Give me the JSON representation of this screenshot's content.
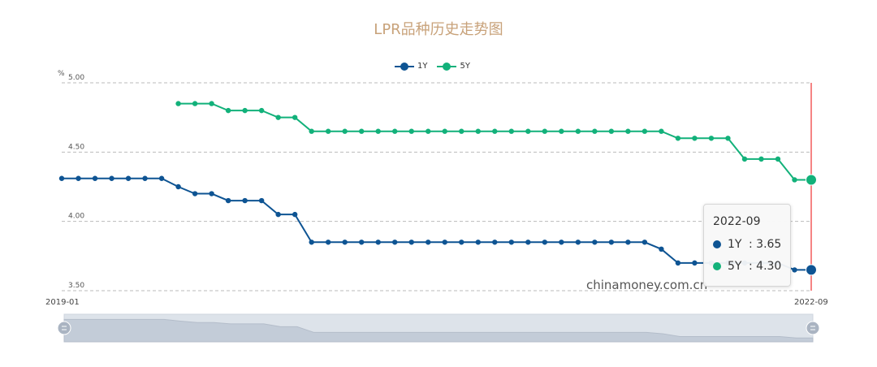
{
  "page": {
    "title": "LPR品种历史走势图",
    "watermark": "chinamoney.com.cn",
    "y_unit": "%"
  },
  "colors": {
    "title": "#c8a27a",
    "series_1y": "#0e5493",
    "series_5y": "#12b17a",
    "cursor": "#ee3333",
    "grid": "#bbbbbb",
    "slider_fill": "#dde3ea",
    "slider_handle": "#aab4c2"
  },
  "tooltip": {
    "date": "2022-09",
    "rows": [
      {
        "name": "1Y",
        "value": ": 3.65"
      },
      {
        "name": "5Y",
        "value": ": 4.30"
      }
    ]
  },
  "chart_data": {
    "type": "line",
    "ylim": [
      3.5,
      5.0
    ],
    "y_ticks": [
      "5.00",
      "4.50",
      "4.00",
      "3.50"
    ],
    "x_start_label": "2019-01",
    "x_end_label": "2022-09",
    "grid": true,
    "legend_placement": "top-center",
    "series": [
      {
        "name": "1Y",
        "values": [
          4.31,
          4.31,
          4.31,
          4.31,
          4.31,
          4.31,
          4.31,
          4.25,
          4.2,
          4.2,
          4.15,
          4.15,
          4.15,
          4.05,
          4.05,
          3.85,
          3.85,
          3.85,
          3.85,
          3.85,
          3.85,
          3.85,
          3.85,
          3.85,
          3.85,
          3.85,
          3.85,
          3.85,
          3.85,
          3.85,
          3.85,
          3.85,
          3.85,
          3.85,
          3.85,
          3.85,
          3.8,
          3.7,
          3.7,
          3.7,
          3.7,
          3.7,
          3.7,
          3.7,
          3.65,
          3.65
        ]
      },
      {
        "name": "5Y",
        "values": [
          null,
          null,
          null,
          null,
          null,
          null,
          null,
          4.85,
          4.85,
          4.85,
          4.8,
          4.8,
          4.8,
          4.75,
          4.75,
          4.65,
          4.65,
          4.65,
          4.65,
          4.65,
          4.65,
          4.65,
          4.65,
          4.65,
          4.65,
          4.65,
          4.65,
          4.65,
          4.65,
          4.65,
          4.65,
          4.65,
          4.65,
          4.65,
          4.65,
          4.65,
          4.65,
          4.6,
          4.6,
          4.6,
          4.6,
          4.45,
          4.45,
          4.45,
          4.3,
          4.3
        ]
      }
    ]
  }
}
